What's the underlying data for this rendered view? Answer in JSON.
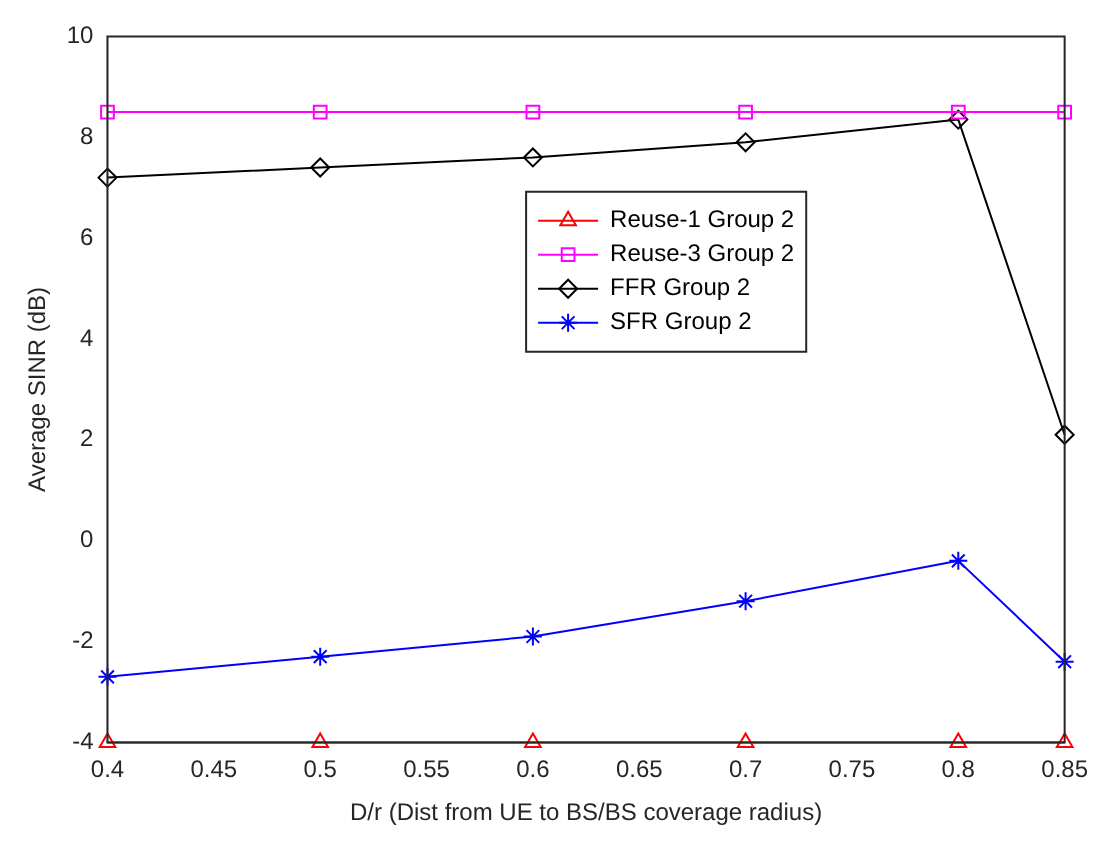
{
  "chart_data": {
    "type": "line",
    "xlabel": "D/r (Dist from UE to BS/BS coverage radius)",
    "ylabel": "Average SINR (dB)",
    "x": [
      0.4,
      0.5,
      0.6,
      0.7,
      0.8,
      0.85
    ],
    "series": [
      {
        "name": "Reuse-1 Group 2",
        "color": "#ff0000",
        "marker": "triangle",
        "values": [
          -4,
          -4,
          -4,
          -4,
          -4,
          -4
        ]
      },
      {
        "name": "Reuse-3 Group 2",
        "color": "#ff00ff",
        "marker": "square",
        "values": [
          8.5,
          8.5,
          8.5,
          8.5,
          8.5,
          8.5
        ]
      },
      {
        "name": "FFR Group 2",
        "color": "#000000",
        "marker": "diamond",
        "values": [
          7.2,
          7.4,
          7.6,
          7.9,
          8.35,
          2.1
        ]
      },
      {
        "name": "SFR Group 2",
        "color": "#0000ff",
        "marker": "cross",
        "values": [
          -2.7,
          -2.3,
          -1.9,
          -1.2,
          -0.4,
          -2.4
        ]
      }
    ],
    "xlim": [
      0.4,
      0.85
    ],
    "xticks": [
      0.4,
      0.45,
      0.5,
      0.55,
      0.6,
      0.65,
      0.7,
      0.75,
      0.8,
      0.85
    ],
    "ylim": [
      -4,
      10
    ],
    "yticks": [
      -4,
      -2,
      0,
      2,
      4,
      6,
      8,
      10
    ],
    "grid": false,
    "legend": "top right",
    "line_style": "solid"
  }
}
